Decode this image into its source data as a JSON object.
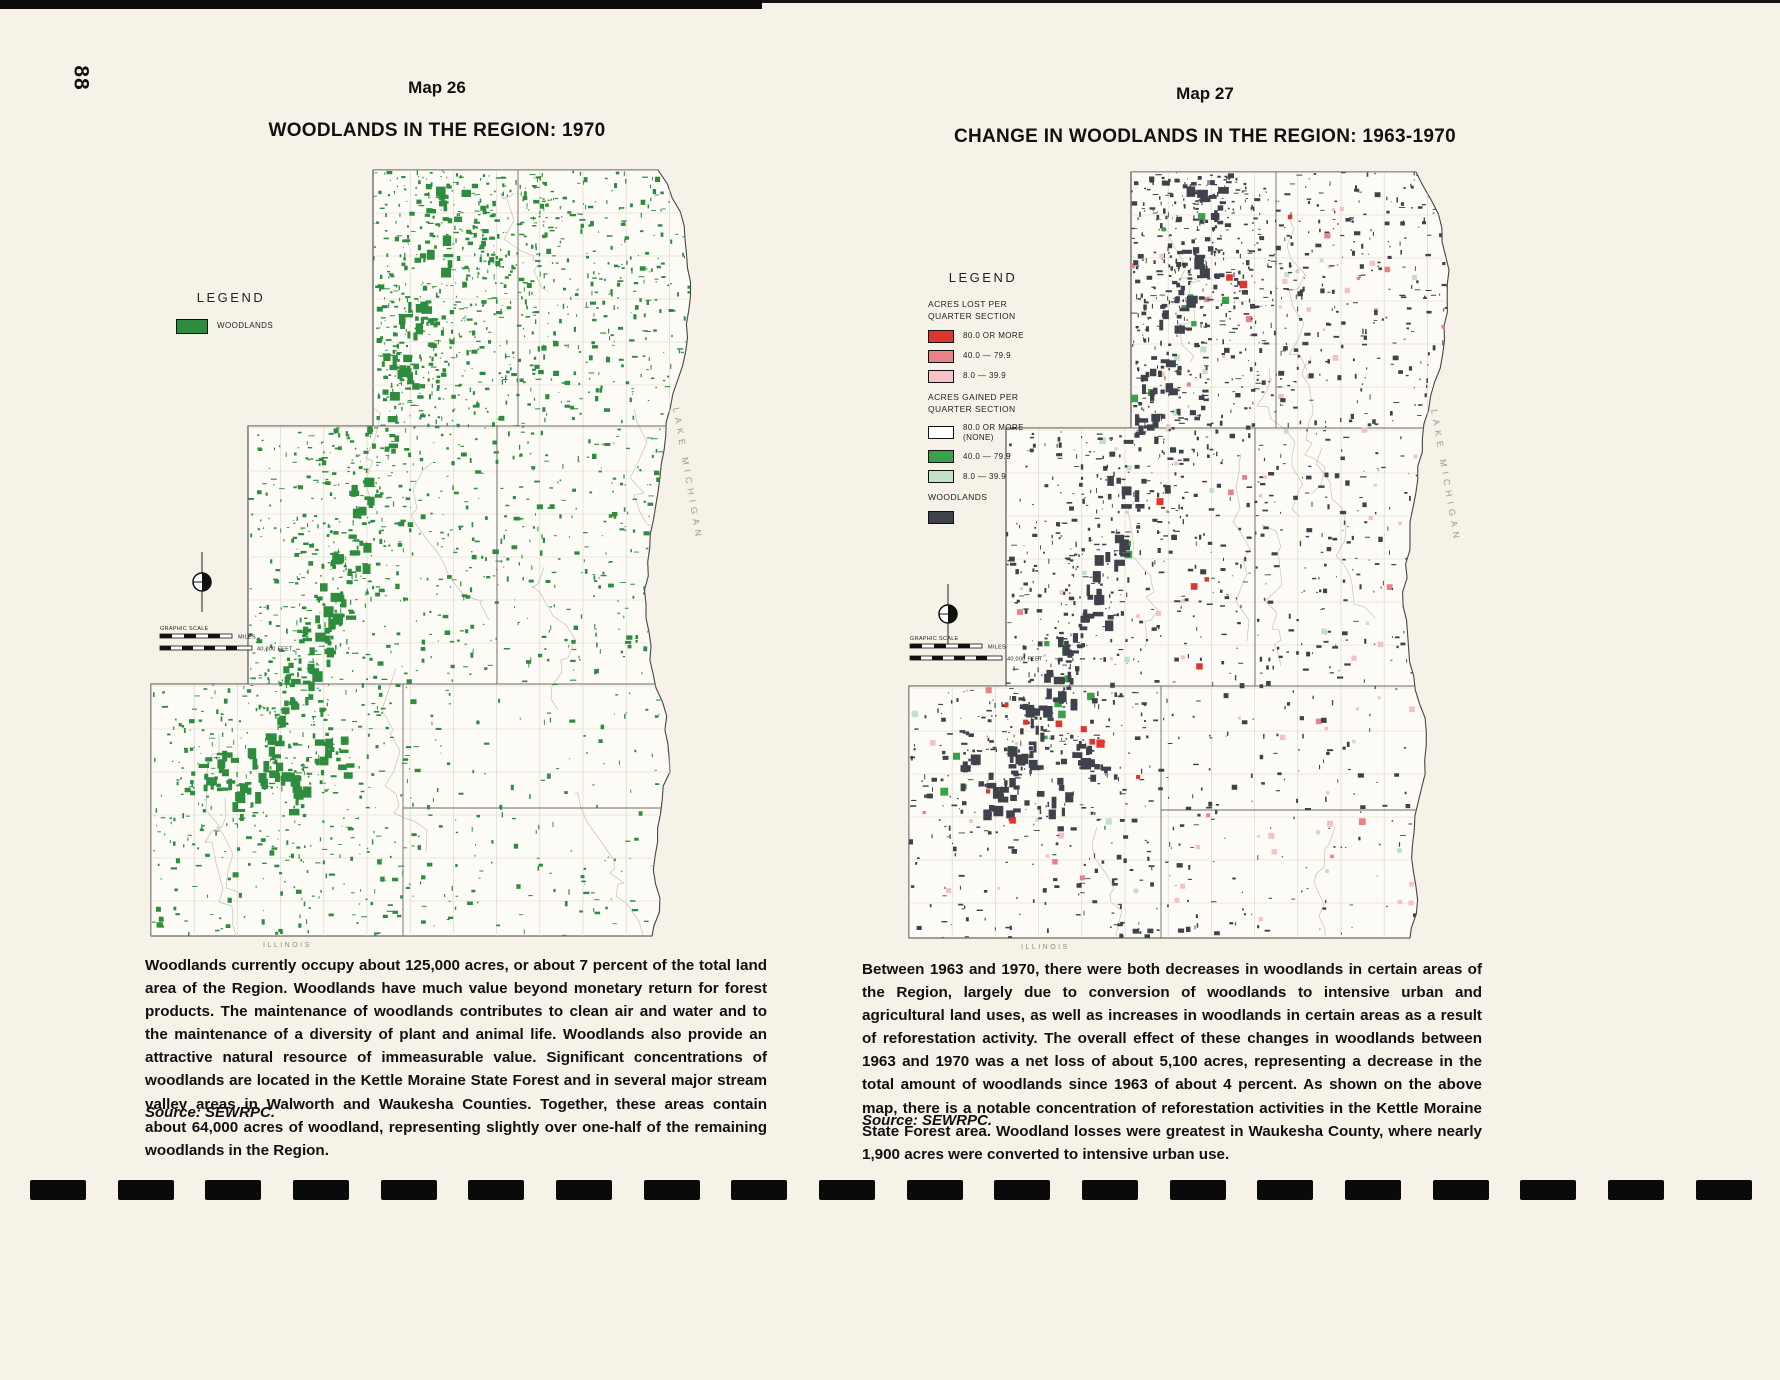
{
  "page": {
    "number": "88"
  },
  "maps": [
    {
      "label": "Map 26",
      "title": "WOODLANDS IN THE REGION: 1970",
      "legend": {
        "heading": "LEGEND",
        "items": [
          {
            "label": "WOODLANDS",
            "color": "#2e8c3f"
          }
        ]
      },
      "graphic_scale": {
        "label": "GRAPHIC SCALE",
        "miles": "MILES",
        "feet": "40,000 FEET"
      },
      "annotations": {
        "lake": "LAKE MICHIGAN",
        "state_line": "ILLINOIS"
      },
      "caption": "Woodlands currently occupy about 125,000 acres, or about 7 percent of the total land area of the Region. Woodlands have much value beyond monetary return for forest products. The maintenance of woodlands contributes to clean air and water and to the maintenance of a diversity of plant and animal life. Woodlands also provide an attractive natural resource of immeasurable value. Significant concentrations of woodlands are located in the Kettle Moraine State Forest and in several major stream valley areas in Walworth and Waukesha Counties. Together, these areas contain about 64,000 acres of woodland, representing slightly over one-half of the remaining woodlands in the Region.",
      "source": "Source: SEWRPC."
    },
    {
      "label": "Map 27",
      "title": "CHANGE IN WOODLANDS IN THE REGION: 1963-1970",
      "legend": {
        "heading": "LEGEND",
        "lost_heading": "ACRES LOST PER QUARTER SECTION",
        "lost_items": [
          {
            "label": "80.0 OR MORE",
            "color": "#df352f"
          },
          {
            "label": "40.0 — 79.9",
            "color": "#ea8186"
          },
          {
            "label": "8.0 — 39.9",
            "color": "#f4c1c4"
          }
        ],
        "gained_heading": "ACRES GAINED PER QUARTER SECTION",
        "gained_items": [
          {
            "label": "80.0 OR MORE",
            "sub": "(NONE)",
            "color": "#ffffff"
          },
          {
            "label": "40.0 — 79.9",
            "sub": "",
            "color": "#37a24b"
          },
          {
            "label": "8.0 — 39.9",
            "sub": "",
            "color": "#c2e2c7"
          }
        ],
        "woodlands_heading": "WOODLANDS",
        "woodlands_color": "#3f424b"
      },
      "graphic_scale": {
        "label": "GRAPHIC SCALE",
        "miles": "MILES",
        "feet": "40,000 FEET"
      },
      "annotations": {
        "lake": "LAKE MICHIGAN",
        "state_line": "ILLINOIS"
      },
      "caption": "Between 1963 and 1970, there were both decreases in woodlands in certain areas of the Region, largely due to conversion of woodlands to intensive urban and agricultural land uses, as well as increases in woodlands in certain areas as a result of reforestation activity. The overall effect of these changes in woodlands between 1963 and 1970 was a net loss of about 5,100 acres, representing a decrease in the total amount of woodlands since 1963 of about 4 percent. As shown on the above map, there is a notable concentration of reforestation activities in the Kettle Moraine State Forest area. Woodland losses were greatest in Waukesha County, where nearly 1,900 acres were converted to intensive urban use.",
      "source": "Source: SEWRPC."
    }
  ]
}
